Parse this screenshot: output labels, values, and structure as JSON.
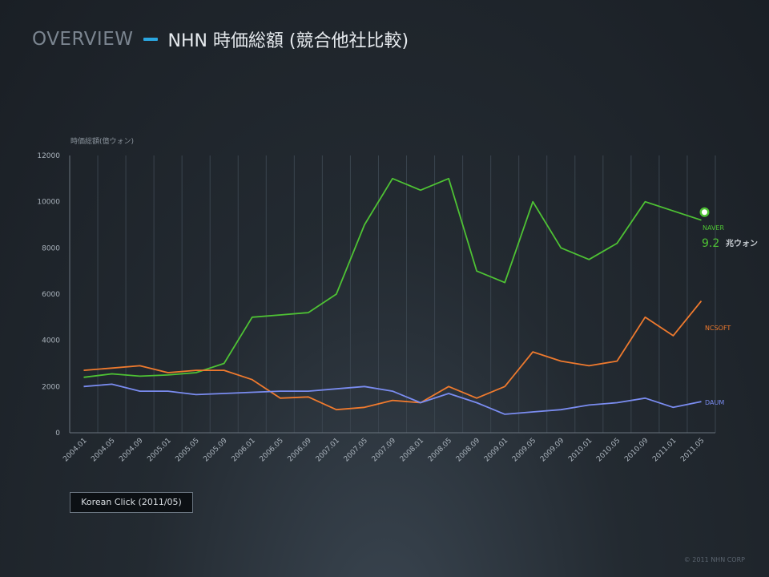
{
  "header": {
    "overview_label": "OVERVIEW",
    "title": "NHN 時価総額 (競合他社比較)"
  },
  "source_note": "Korean Click (2011/05)",
  "copyright": "© 2011 NHN CORP",
  "highlight": {
    "value": "9.2",
    "unit": "兆ウォン"
  },
  "colors": {
    "naver": "#4ec234",
    "ncsoft": "#ef7a2e",
    "daum": "#7a8cf0",
    "grid": "#3a444e",
    "tick_text": "#aab3bc",
    "accent": "#2aa6e0"
  },
  "chart_data": {
    "type": "line",
    "ylabel": "時価総額(億ウォン)",
    "ylim": [
      0,
      12000
    ],
    "yticks": [
      0,
      2000,
      4000,
      6000,
      8000,
      10000,
      12000
    ],
    "x_tick_labels": [
      "2004.01",
      "2004.05",
      "2004.09",
      "2005.01",
      "2005.05",
      "2005.09",
      "2006.01",
      "2006.05",
      "2006.09",
      "2007.01",
      "2007.05",
      "2007.09",
      "2008.01",
      "2008.05",
      "2008.09",
      "2009.01",
      "2009.05",
      "2009.09",
      "2010.01",
      "2010.05",
      "2010.09",
      "2011.01",
      "2011.05"
    ],
    "x": [
      "2004.01",
      "2004.05",
      "2004.09",
      "2005.01",
      "2005.05",
      "2005.09",
      "2006.01",
      "2006.05",
      "2006.09",
      "2007.01",
      "2007.05",
      "2007.09",
      "2008.01",
      "2008.05",
      "2008.09",
      "2009.01",
      "2009.05",
      "2009.09",
      "2010.01",
      "2010.05",
      "2010.09",
      "2011.01",
      "2011.05"
    ],
    "grid": true,
    "series": [
      {
        "name": "NAVER",
        "values": [
          2400,
          2550,
          2450,
          2500,
          2600,
          3000,
          5000,
          5100,
          5200,
          6000,
          9000,
          11000,
          10500,
          11000,
          7000,
          6500,
          10000,
          8000,
          7500,
          8200,
          10000,
          9600,
          9200
        ]
      },
      {
        "name": "NCSOFT",
        "values": [
          2700,
          2800,
          2900,
          2600,
          2700,
          2700,
          2300,
          1500,
          1550,
          1000,
          1100,
          1400,
          1300,
          2000,
          1500,
          2000,
          3500,
          3100,
          2900,
          3100,
          5000,
          4200,
          5700
        ]
      },
      {
        "name": "DAUM",
        "values": [
          2000,
          2100,
          1800,
          1800,
          1650,
          1700,
          1750,
          1800,
          1800,
          1900,
          2000,
          1800,
          1300,
          1700,
          1300,
          800,
          900,
          1000,
          1200,
          1300,
          1500,
          1100,
          1350
        ]
      }
    ]
  }
}
